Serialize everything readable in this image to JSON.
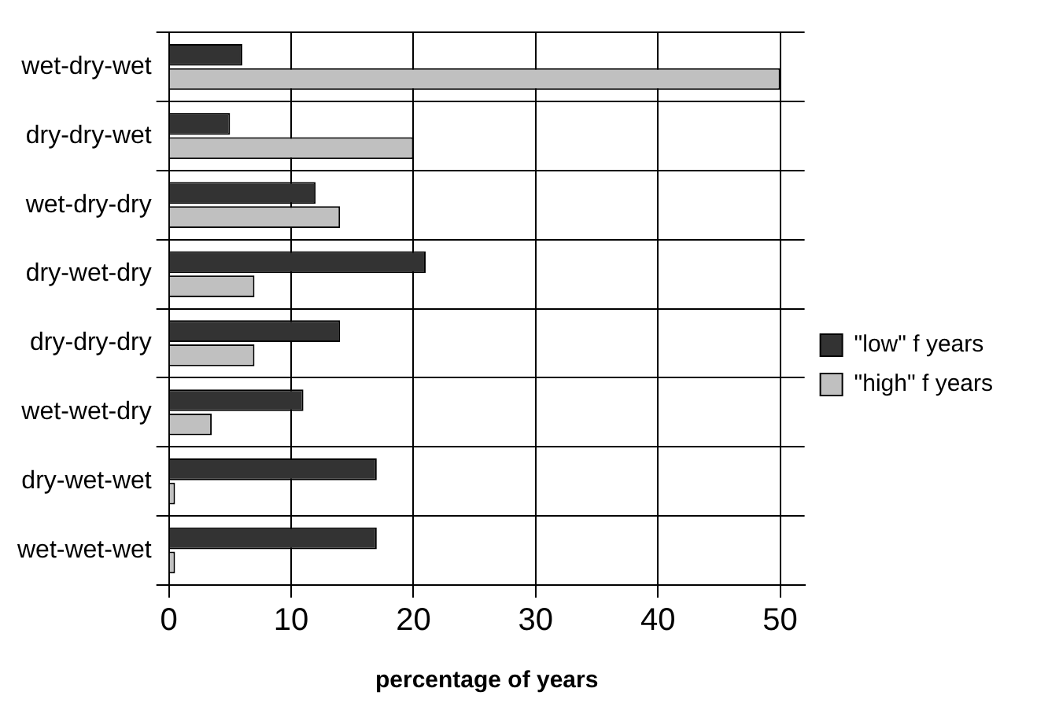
{
  "chart_data": {
    "type": "bar",
    "orientation": "horizontal",
    "xlabel": "percentage of years",
    "categories": [
      "wet-dry-wet",
      "dry-dry-wet",
      "wet-dry-dry",
      "dry-wet-dry",
      "dry-dry-dry",
      "wet-wet-dry",
      "dry-wet-wet",
      "wet-wet-wet"
    ],
    "series": [
      {
        "name": "\"low\" f years",
        "color": "#333333",
        "values": [
          6,
          5,
          12,
          21,
          14,
          11,
          17,
          17
        ]
      },
      {
        "name": "\"high\" f years",
        "color": "#c0c0c0",
        "values": [
          50,
          20,
          14,
          7,
          7,
          3.5,
          0.5,
          0.5
        ]
      }
    ],
    "xlim": [
      0,
      52
    ],
    "xticks": [
      0,
      10,
      20,
      30,
      40,
      50
    ],
    "grid": true,
    "legend": "right"
  }
}
